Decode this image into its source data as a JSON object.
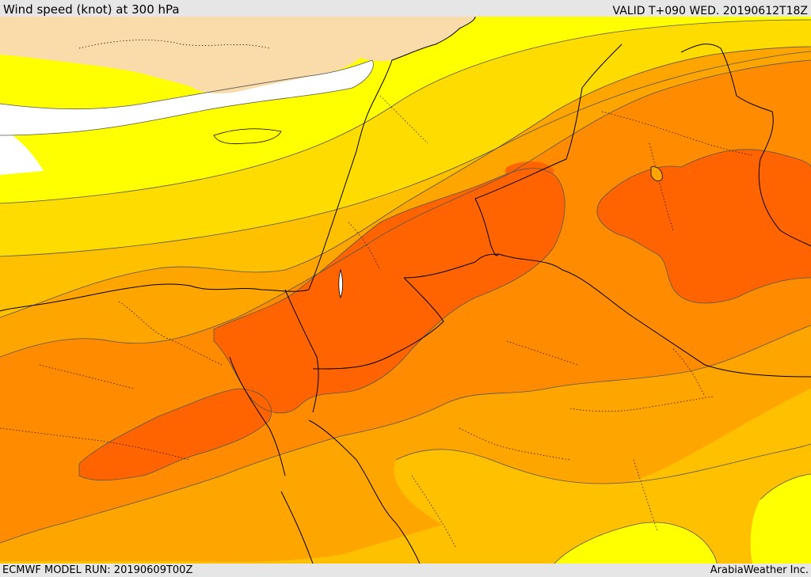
{
  "header": {
    "title": "Wind speed (knot) at 300 hPa",
    "valid_time": "VALID T+090 WED. 20190612T18Z"
  },
  "footer": {
    "model_run": "ECMWF MODEL RUN: 20190609T00Z",
    "credit": "ArabiaWeather Inc."
  },
  "map": {
    "variable": "wind speed",
    "level": "300 hPa",
    "unit": "knot",
    "palette": {
      "land_no_data": "#fadcaa",
      "calm": "#ffffff",
      "level_1": "#ffff00",
      "level_2": "#ffdc00",
      "level_3": "#ffc000",
      "level_4": "#ffa500",
      "level_5": "#ff8c00",
      "level_6": "#ff6400"
    }
  }
}
